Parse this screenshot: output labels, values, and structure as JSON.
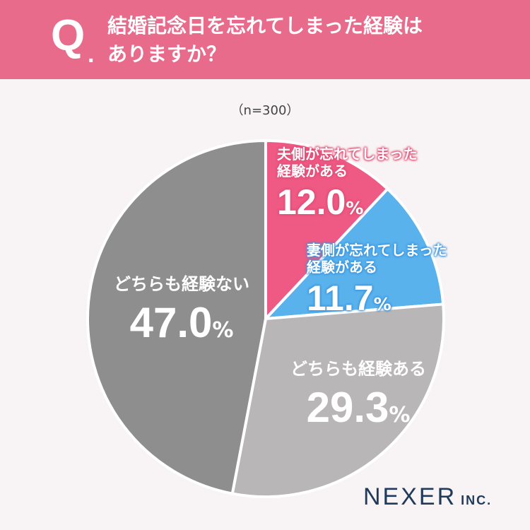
{
  "header": {
    "q_mark": "Q",
    "q_dot": ".",
    "question_line1": "結婚記念日を忘れてしまった経験は",
    "question_line2": "ありますか？"
  },
  "sample_size": "（n=300）",
  "chart_data": {
    "type": "pie",
    "slices": [
      {
        "label_line1": "夫側が忘れてしまった",
        "label_line2": "経験がある",
        "value": 12.0,
        "value_text": "12.0",
        "color": "#ee5a84"
      },
      {
        "label_line1": "妻側が忘れてしまった",
        "label_line2": "経験がある",
        "value": 11.7,
        "value_text": "11.7",
        "color": "#5ab2ec"
      },
      {
        "label_line1": "どちらも経験ある",
        "label_line2": "",
        "value": 29.3,
        "value_text": "29.3",
        "color": "#b9b6b7"
      },
      {
        "label_line1": "どちらも経験ない",
        "label_line2": "",
        "value": 47.0,
        "value_text": "47.0",
        "color": "#8e8e8e"
      }
    ],
    "unit": "%",
    "start": "12 o'clock",
    "direction": "clockwise"
  },
  "logo": {
    "name": "NEXER",
    "suffix": "INC."
  }
}
